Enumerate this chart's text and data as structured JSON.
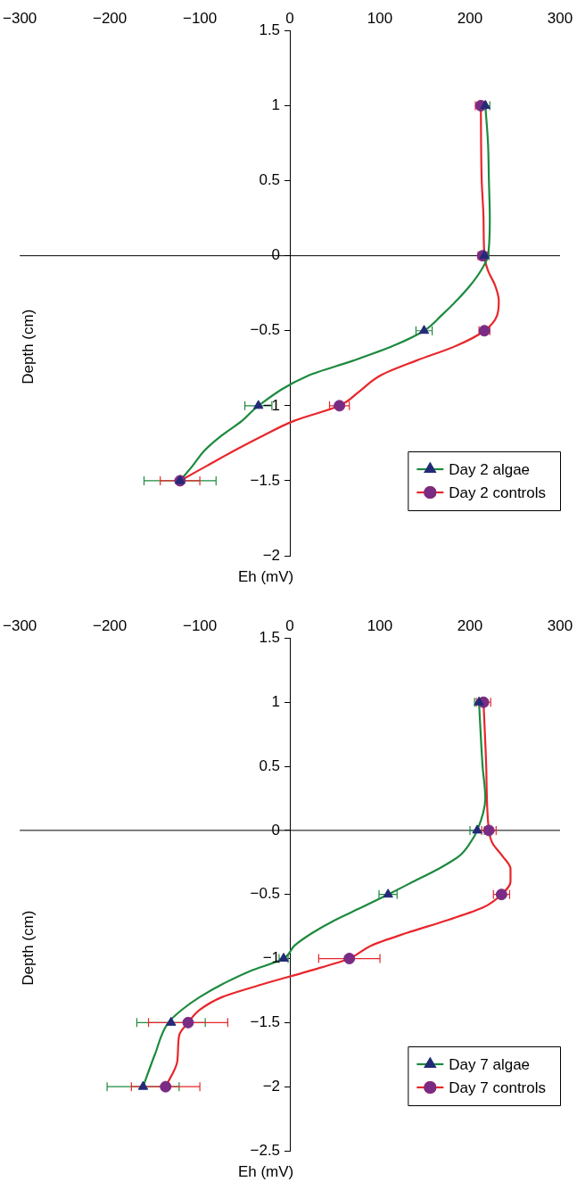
{
  "chart_data": [
    {
      "type": "line",
      "xlabel": "Eh (mV)",
      "ylabel": "Depth (cm)",
      "xlim": [
        -300,
        300
      ],
      "xticks": [
        {
          "value": -300,
          "label": "−300"
        },
        {
          "value": -200,
          "label": "−200"
        },
        {
          "value": -100,
          "label": "−100"
        },
        0,
        100,
        200,
        300
      ],
      "ylim": [
        -2,
        1.5
      ],
      "yticks": [
        {
          "value": -2,
          "label": "−2"
        },
        {
          "value": -1.5,
          "label": "−1.5"
        },
        {
          "value": -1,
          "label": "−1"
        },
        {
          "value": -0.5,
          "label": "−0.5"
        },
        0,
        0.5,
        1,
        1.5
      ],
      "legend": "bottom right",
      "series": [
        {
          "type": "line",
          "color": "#1d8a3e",
          "x": [
            217,
            220,
            221,
            222,
            220,
            212,
            200,
            185,
            168,
            149,
            115,
            70,
            20,
            -35,
            -53,
            -76,
            -95,
            -108,
            -122
          ],
          "values": [
            1,
            0.75,
            0.5,
            0.25,
            0,
            -0.1,
            -0.2,
            -0.3,
            -0.4,
            -0.5,
            -0.6,
            -0.7,
            -0.8,
            -1,
            -1.1,
            -1.2,
            -1.3,
            -1.4,
            -1.5
          ]
        },
        {
          "type": "line",
          "color": "#e8262b",
          "x": [
            212,
            213,
            215,
            216,
            220,
            228,
            232,
            230,
            216,
            185,
            140,
            100,
            78,
            55,
            5,
            -30,
            -62,
            -92,
            -122
          ],
          "values": [
            1,
            0.5,
            0.25,
            0,
            -0.1,
            -0.2,
            -0.3,
            -0.4,
            -0.5,
            -0.6,
            -0.7,
            -0.8,
            -0.9,
            -1,
            -1.1,
            -1.2,
            -1.3,
            -1.4,
            -1.5
          ]
        },
        {
          "type": "scatter",
          "name": "Day 2 algae",
          "color": "#242a78",
          "marker": "triangle",
          "x": [
            217,
            216,
            149,
            -35,
            -122
          ],
          "values": [
            1,
            0,
            -0.5,
            -1,
            -1.5
          ],
          "xerrors": [
            5,
            5,
            9,
            15,
            40
          ]
        },
        {
          "type": "scatter",
          "name": "Day 2 controls",
          "color": "#7a2b83",
          "marker": "circle",
          "x": [
            212,
            214,
            216,
            55,
            -122
          ],
          "values": [
            1,
            0,
            -0.5,
            -1,
            -1.5
          ],
          "xerrors": [
            6,
            5,
            6,
            11,
            22
          ]
        }
      ]
    },
    {
      "type": "line",
      "xlabel": "Eh (mV)",
      "ylabel": "Depth (cm)",
      "xlim": [
        -300,
        300
      ],
      "xticks": [
        {
          "value": -300,
          "label": "−300"
        },
        {
          "value": -200,
          "label": "−200"
        },
        {
          "value": -100,
          "label": "−100"
        },
        0,
        100,
        200,
        300
      ],
      "ylim": [
        -2.5,
        1.5
      ],
      "yticks": [
        {
          "value": -2.5,
          "label": "−2.5"
        },
        {
          "value": -2,
          "label": "−2"
        },
        {
          "value": -1.5,
          "label": "−1.5"
        },
        {
          "value": -1,
          "label": "−1"
        },
        {
          "value": -0.5,
          "label": "−0.5"
        },
        0,
        0.5,
        1,
        1.5
      ],
      "legend": "bottom right",
      "series": [
        {
          "type": "line",
          "color": "#1d8a3e",
          "x": [
            210,
            214,
            217,
            208,
            200,
            188,
            165,
            137,
            109,
            80,
            50,
            25,
            5,
            -7,
            -45,
            -75,
            -100,
            -120,
            -135,
            -150,
            -163
          ],
          "values": [
            1,
            0.5,
            0.25,
            0,
            -0.1,
            -0.2,
            -0.3,
            -0.4,
            -0.5,
            -0.6,
            -0.7,
            -0.8,
            -0.9,
            -1,
            -1.1,
            -1.2,
            -1.3,
            -1.4,
            -1.5,
            -1.75,
            -2
          ]
        },
        {
          "type": "line",
          "color": "#e8262b",
          "x": [
            215,
            218,
            221,
            225,
            236,
            245,
            245,
            235,
            215,
            175,
            130,
            90,
            66,
            20,
            -30,
            -75,
            -100,
            -113,
            -123,
            -125,
            -138
          ],
          "values": [
            1,
            0.5,
            0,
            -0.1,
            -0.2,
            -0.3,
            -0.4,
            -0.5,
            -0.6,
            -0.7,
            -0.8,
            -0.9,
            -1,
            -1.1,
            -1.2,
            -1.3,
            -1.4,
            -1.5,
            -1.6,
            -1.8,
            -2
          ]
        },
        {
          "type": "scatter",
          "name": "Day 7 algae",
          "color": "#242a78",
          "marker": "triangle",
          "x": [
            210,
            208,
            109,
            -7,
            -132,
            -163
          ],
          "values": [
            1,
            0,
            -0.5,
            -1,
            -1.5,
            -2
          ],
          "xerrors": [
            5,
            8,
            10,
            5,
            38,
            40
          ]
        },
        {
          "type": "scatter",
          "name": "Day 7 controls",
          "color": "#7a2b83",
          "marker": "circle",
          "x": [
            215,
            221,
            235,
            66,
            -113,
            -138
          ],
          "values": [
            1,
            0,
            -0.5,
            -1,
            -1.5,
            -2
          ],
          "xerrors": [
            8,
            8,
            9,
            34,
            44,
            38
          ]
        }
      ]
    }
  ]
}
